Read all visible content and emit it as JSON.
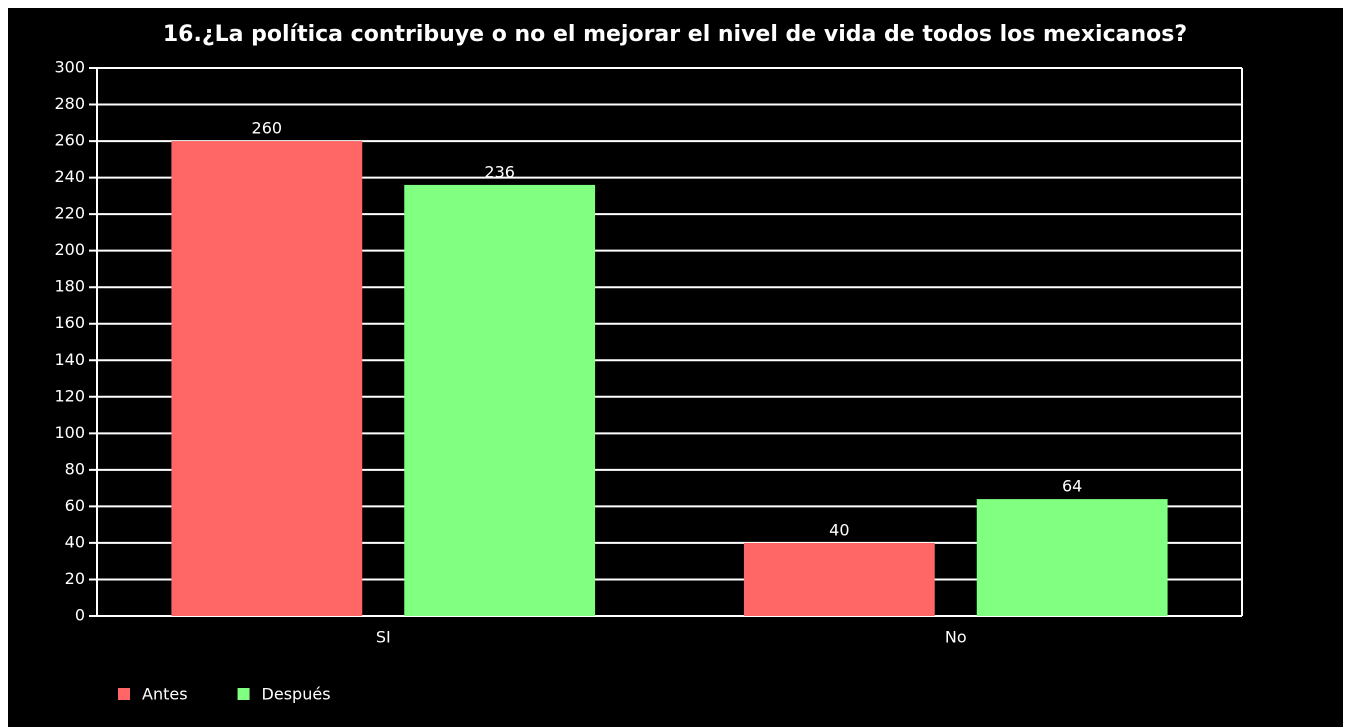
{
  "chart_data": {
    "type": "bar",
    "title": "16.¿La política contribuye o no el mejorar el nivel de vida de todos los mexicanos?",
    "categories": [
      "SI",
      "No"
    ],
    "series": [
      {
        "name": "Antes",
        "color": "#ff6666",
        "values": [
          260,
          40
        ]
      },
      {
        "name": "Después",
        "color": "#80ff80",
        "values": [
          236,
          64
        ]
      }
    ],
    "ylim": [
      0,
      300
    ],
    "yticks": [
      0,
      20,
      40,
      60,
      80,
      100,
      120,
      140,
      160,
      180,
      200,
      220,
      240,
      260,
      280,
      300
    ],
    "grid": true,
    "legend": "bottom-left"
  }
}
